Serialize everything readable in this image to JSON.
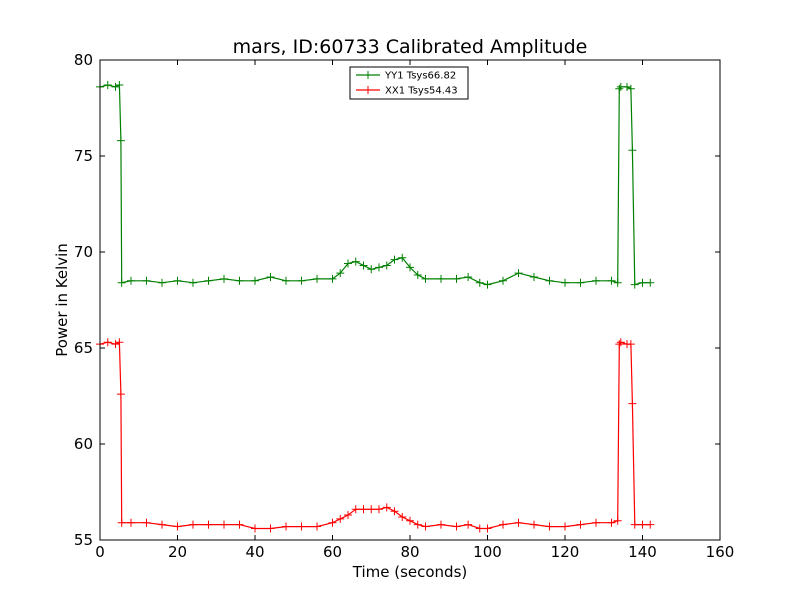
{
  "chart_data": {
    "type": "line",
    "title": "mars, ID:60733 Calibrated Amplitude",
    "xlabel": "Time (seconds)",
    "ylabel": "Power in Kelvin",
    "xlim": [
      0,
      160
    ],
    "ylim": [
      55,
      80
    ],
    "xticks": [
      "0",
      "20",
      "40",
      "60",
      "80",
      "100",
      "120",
      "140",
      "160"
    ],
    "yticks": [
      "55",
      "60",
      "65",
      "70",
      "75",
      "80"
    ],
    "grid": false,
    "legend_position": "top-center",
    "series": [
      {
        "name": "YY1 Tsys66.82",
        "color": "#008000",
        "marker": "+",
        "x": [
          0,
          2,
          4,
          5,
          5.4,
          5.6,
          8,
          12,
          16,
          20,
          24,
          28,
          32,
          36,
          40,
          44,
          48,
          52,
          56,
          60,
          62,
          64,
          66,
          68,
          70,
          72,
          74,
          76,
          78,
          80,
          82,
          84,
          88,
          92,
          95,
          98,
          100,
          104,
          108,
          112,
          116,
          120,
          124,
          128,
          132,
          133.6,
          134,
          134.4,
          136,
          137,
          137.4,
          138,
          140,
          142
        ],
        "y": [
          78.6,
          78.7,
          78.6,
          78.7,
          75.8,
          68.4,
          68.5,
          68.5,
          68.4,
          68.5,
          68.4,
          68.5,
          68.6,
          68.5,
          68.5,
          68.7,
          68.5,
          68.5,
          68.6,
          68.6,
          68.9,
          69.4,
          69.5,
          69.3,
          69.1,
          69.2,
          69.3,
          69.6,
          69.7,
          69.2,
          68.8,
          68.6,
          68.6,
          68.6,
          68.7,
          68.4,
          68.3,
          68.5,
          68.9,
          68.7,
          68.5,
          68.4,
          68.4,
          68.5,
          68.5,
          68.4,
          78.5,
          78.6,
          78.6,
          78.5,
          75.3,
          68.3,
          68.4,
          68.4
        ]
      },
      {
        "name": "XX1 Tsys54.43",
        "color": "#ff0000",
        "marker": "+",
        "x": [
          0,
          2,
          4,
          5,
          5.4,
          5.6,
          8,
          12,
          16,
          20,
          24,
          28,
          32,
          36,
          40,
          44,
          48,
          52,
          56,
          60,
          62,
          64,
          66,
          68,
          70,
          72,
          74,
          76,
          78,
          80,
          82,
          84,
          88,
          92,
          95,
          98,
          100,
          104,
          108,
          112,
          116,
          120,
          124,
          128,
          132,
          133.6,
          134,
          134.4,
          136,
          137,
          137.4,
          138,
          140,
          142
        ],
        "y": [
          65.2,
          65.3,
          65.2,
          65.3,
          62.6,
          55.9,
          55.9,
          55.9,
          55.8,
          55.7,
          55.8,
          55.8,
          55.8,
          55.8,
          55.6,
          55.6,
          55.7,
          55.7,
          55.7,
          55.9,
          56.1,
          56.3,
          56.6,
          56.6,
          56.6,
          56.6,
          56.7,
          56.5,
          56.2,
          56.0,
          55.8,
          55.7,
          55.8,
          55.7,
          55.8,
          55.6,
          55.6,
          55.8,
          55.9,
          55.8,
          55.7,
          55.7,
          55.8,
          55.9,
          55.9,
          56.0,
          65.2,
          65.3,
          65.2,
          65.2,
          62.1,
          55.8,
          55.8,
          55.8
        ]
      }
    ]
  }
}
